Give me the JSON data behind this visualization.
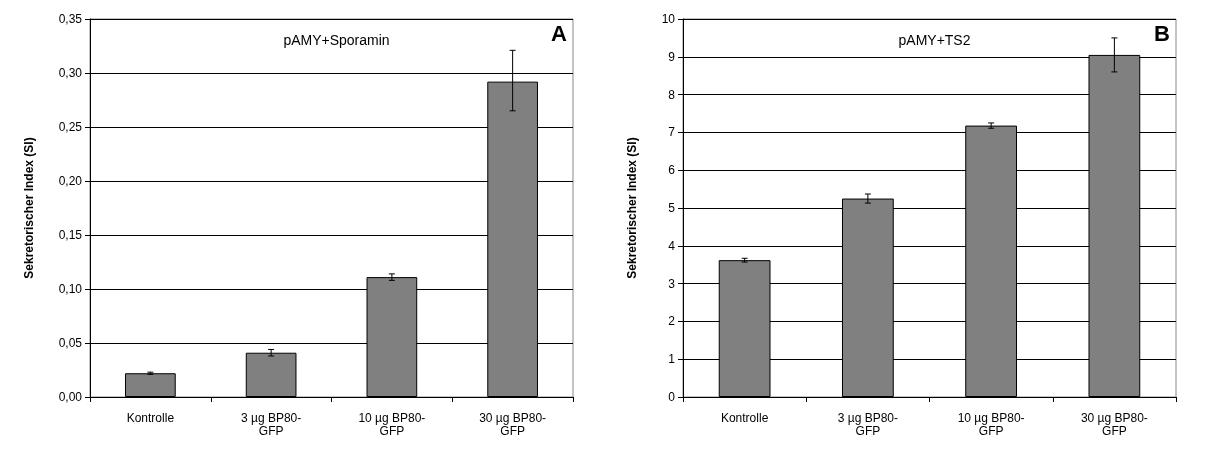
{
  "chart_data": [
    {
      "type": "bar",
      "title": "pAMY+Sporamin",
      "ylabel": "Sekretorischer Index (SI)",
      "annotations": [
        "A"
      ],
      "categories": [
        "Kontrolle",
        "3 µg BP80-GFP",
        "10 µg BP80-GFP",
        "30 µg BP80-GFP"
      ],
      "values": [
        0.022,
        0.041,
        0.111,
        0.292
      ],
      "color": "#808080",
      "errors": [
        0.001,
        0.003,
        0.003,
        [
          0.265,
          0.321
        ]
      ],
      "ylim": [
        0,
        0.35
      ],
      "yticks": [
        {
          "value": 0,
          "label": "0,00"
        },
        {
          "value": 0.05,
          "label": "0,05"
        },
        {
          "value": 0.1,
          "label": "0,10"
        },
        {
          "value": 0.15,
          "label": "0,15"
        },
        {
          "value": 0.2,
          "label": "0,20"
        },
        {
          "value": 0.25,
          "label": "0,25"
        },
        {
          "value": 0.3,
          "label": "0,30"
        },
        {
          "value": 0.35,
          "label": "0,35"
        }
      ],
      "grid": "y"
    },
    {
      "type": "bar",
      "title": "pAMY+TS2",
      "ylabel": "Sekretorischer Index (SI)",
      "annotations": [
        "B"
      ],
      "categories": [
        "Kontrolle",
        "3 µg BP80-GFP",
        "10 µg BP80-GFP",
        "30 µg BP80-GFP"
      ],
      "values": [
        3.62,
        5.25,
        7.18,
        9.05
      ],
      "color": "#808080",
      "errors": [
        0.05,
        0.12,
        0.07,
        [
          8.6,
          9.5
        ]
      ],
      "ylim": [
        0,
        10
      ],
      "yticks": [
        0,
        1,
        2,
        3,
        4,
        5,
        6,
        7,
        8,
        9,
        10
      ],
      "grid": "y"
    }
  ]
}
